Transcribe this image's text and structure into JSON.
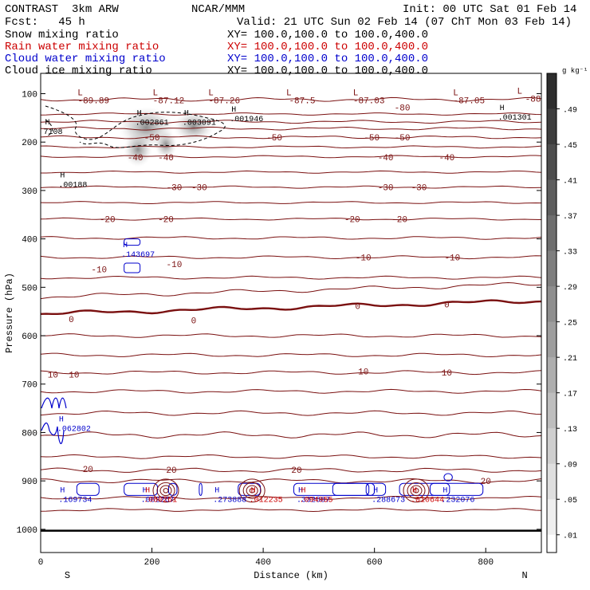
{
  "header": {
    "model": "CONTRAST  3km ARW",
    "org": "NCAR/MMM",
    "init": "Init: 00 UTC Sat 01 Feb 14",
    "fcst": "Fcst:   45 h",
    "valid": "Valid: 21 UTC Sun 02 Feb 14 (07 ChT Mon 03 Feb 14)",
    "fields": [
      {
        "name": "Snow mixing ratio",
        "xy": "XY= 100.0,100.0 to 100.0,400.0",
        "color": "#000000"
      },
      {
        "name": "Rain water mixing ratio",
        "xy": "XY= 100.0,100.0 to 100.0,400.0",
        "color": "#cc0000"
      },
      {
        "name": "Cloud water mixing ratio",
        "xy": "XY= 100.0,100.0 to 100.0,400.0",
        "color": "#0000cc"
      },
      {
        "name": "Cloud ice mixing ratio",
        "xy": "XY= 100.0,100.0 to 100.0,400.0",
        "color": "#000000"
      }
    ]
  },
  "colorbar": {
    "unit": "g kg⁻¹",
    "labels": [
      ".49",
      ".45",
      ".41",
      ".37",
      ".33",
      ".29",
      ".25",
      ".21",
      ".17",
      ".13",
      ".09",
      ".05",
      ".01"
    ]
  },
  "chart_data": {
    "type": "cross-section contour",
    "xlabel": "Distance (km)",
    "ylabel": "Pressure (hPa)",
    "xlim": [
      0,
      900
    ],
    "ylim": [
      1050,
      60
    ],
    "x_ticks": [
      "0",
      "200",
      "400",
      "600",
      "800"
    ],
    "y_ticks": [
      "100",
      "200",
      "300",
      "400",
      "500",
      "600",
      "700",
      "800",
      "900",
      "1000"
    ],
    "end_labels": {
      "left": "S",
      "right": "N"
    },
    "contour_line_color": "#7a1010",
    "temperature_labels": [
      {
        "x": 95,
        "p": 113,
        "text": "-89.89"
      },
      {
        "x": 230,
        "p": 113,
        "text": "-87.12"
      },
      {
        "x": 330,
        "p": 113,
        "text": "-87.26"
      },
      {
        "x": 470,
        "p": 113,
        "text": "-87.5"
      },
      {
        "x": 590,
        "p": 113,
        "text": "-87.03"
      },
      {
        "x": 770,
        "p": 113,
        "text": "-87.05"
      },
      {
        "x": 650,
        "p": 128,
        "text": "-80"
      },
      {
        "x": 885,
        "p": 110,
        "text": "-88"
      },
      {
        "x": 200,
        "p": 190,
        "text": "-50"
      },
      {
        "x": 420,
        "p": 190,
        "text": "-50"
      },
      {
        "x": 595,
        "p": 190,
        "text": "-50"
      },
      {
        "x": 650,
        "p": 190,
        "text": "-50"
      },
      {
        "x": 170,
        "p": 231,
        "text": "-40"
      },
      {
        "x": 225,
        "p": 231,
        "text": "-40"
      },
      {
        "x": 620,
        "p": 231,
        "text": "-40"
      },
      {
        "x": 730,
        "p": 231,
        "text": "-40"
      },
      {
        "x": 240,
        "p": 293,
        "text": "-30"
      },
      {
        "x": 285,
        "p": 293,
        "text": "-30"
      },
      {
        "x": 620,
        "p": 293,
        "text": "-30"
      },
      {
        "x": 680,
        "p": 293,
        "text": "-30"
      },
      {
        "x": 120,
        "p": 359,
        "text": "-20"
      },
      {
        "x": 225,
        "p": 359,
        "text": "-20"
      },
      {
        "x": 560,
        "p": 359,
        "text": "-20"
      },
      {
        "x": 645,
        "p": 359,
        "text": "-20"
      },
      {
        "x": 105,
        "p": 462,
        "text": "-10"
      },
      {
        "x": 240,
        "p": 452,
        "text": "-10"
      },
      {
        "x": 580,
        "p": 438,
        "text": "-10"
      },
      {
        "x": 740,
        "p": 438,
        "text": "-10"
      },
      {
        "x": 55,
        "p": 565,
        "text": "0"
      },
      {
        "x": 275,
        "p": 568,
        "text": "0"
      },
      {
        "x": 570,
        "p": 538,
        "text": "0"
      },
      {
        "x": 730,
        "p": 535,
        "text": "0"
      },
      {
        "x": 22,
        "p": 680,
        "text": "10"
      },
      {
        "x": 60,
        "p": 680,
        "text": "10"
      },
      {
        "x": 580,
        "p": 673,
        "text": "10"
      },
      {
        "x": 730,
        "p": 676,
        "text": "10"
      },
      {
        "x": 85,
        "p": 875,
        "text": "20"
      },
      {
        "x": 235,
        "p": 877,
        "text": "20"
      },
      {
        "x": 460,
        "p": 877,
        "text": "20"
      },
      {
        "x": 800,
        "p": 900,
        "text": "20"
      }
    ],
    "maxima_labels": [
      {
        "x": 170,
        "p": 158,
        "text": ".002861",
        "color": "#000000"
      },
      {
        "x": 255,
        "p": 158,
        "text": ".003091",
        "color": "#000000"
      },
      {
        "x": 340,
        "p": 150,
        "text": ".001946",
        "color": "#000000"
      },
      {
        "x": 822,
        "p": 147,
        "text": ".001301",
        "color": "#000000"
      },
      {
        "x": 5,
        "p": 177,
        "text": "7108",
        "color": "#000000"
      },
      {
        "x": 32,
        "p": 286,
        "text": ".00188",
        "color": "#000000"
      },
      {
        "x": 145,
        "p": 430,
        "text": ".143697",
        "color": "#0000cc"
      },
      {
        "x": 30,
        "p": 790,
        "text": ".062802",
        "color": "#0000cc"
      },
      {
        "x": 32,
        "p": 937,
        "text": ".169734",
        "color": "#0000cc"
      },
      {
        "x": 180,
        "p": 937,
        "text": ".082267",
        "color": "#0000cc"
      },
      {
        "x": 185,
        "p": 937,
        "text": ".080261",
        "color": "#cc0000"
      },
      {
        "x": 310,
        "p": 937,
        "text": ".273888",
        "color": "#0000cc"
      },
      {
        "x": 375,
        "p": 937,
        "text": ".012235",
        "color": "#cc0000"
      },
      {
        "x": 460,
        "p": 937,
        "text": ".332687",
        "color": "#0000cc"
      },
      {
        "x": 465,
        "p": 937,
        "text": ".094955",
        "color": "#cc0000"
      },
      {
        "x": 595,
        "p": 937,
        "text": ".288673",
        "color": "#0000cc"
      },
      {
        "x": 665,
        "p": 937,
        "text": ".010644",
        "color": "#cc0000"
      },
      {
        "x": 720,
        "p": 937,
        "text": ".232076",
        "color": "#0000cc"
      }
    ]
  }
}
